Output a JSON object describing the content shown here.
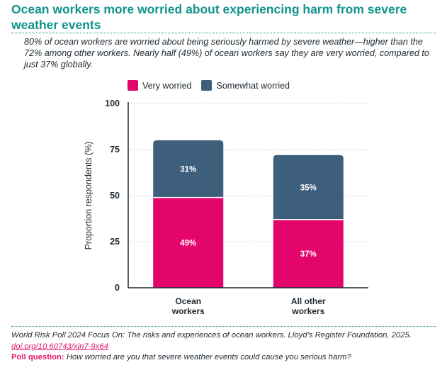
{
  "title": "Ocean workers more worried about experiencing harm from severe weather events",
  "subtitle": "80% of ocean workers are worried about being seriously harmed by severe weather—higher than the 72% among other workers. Nearly half (49%) of ocean workers say they are very worried, compared to just 37% globally.",
  "colors": {
    "very_worried": "#e3046c",
    "somewhat_worried": "#3d5f7c",
    "accent": "#12938c"
  },
  "chart_data": {
    "type": "bar",
    "stacked": true,
    "categories": [
      [
        "Ocean",
        "workers"
      ],
      [
        "All other",
        "workers"
      ]
    ],
    "series": [
      {
        "name": "Very worried",
        "values": [
          49,
          37
        ],
        "labels": [
          "49%",
          "37%"
        ]
      },
      {
        "name": "Somewhat worried",
        "values": [
          31,
          35
        ],
        "labels": [
          "31%",
          "35%"
        ]
      }
    ],
    "ylabel": "Proportion respondents (%)",
    "ylim": [
      0,
      100
    ],
    "yticks": [
      0,
      25,
      50,
      75,
      100
    ],
    "grid": true,
    "legend": "top"
  },
  "footer": {
    "citation": "World Risk Poll 2024 Focus On: The risks and experiences of ocean workers. Lloyd’s Register Foundation, 2025.",
    "doi": "doi.org/10.60743/xjn7-9x64",
    "poll_label": "Poll question:",
    "poll_question": "How worried are you that severe weather events could cause you serious harm?"
  }
}
